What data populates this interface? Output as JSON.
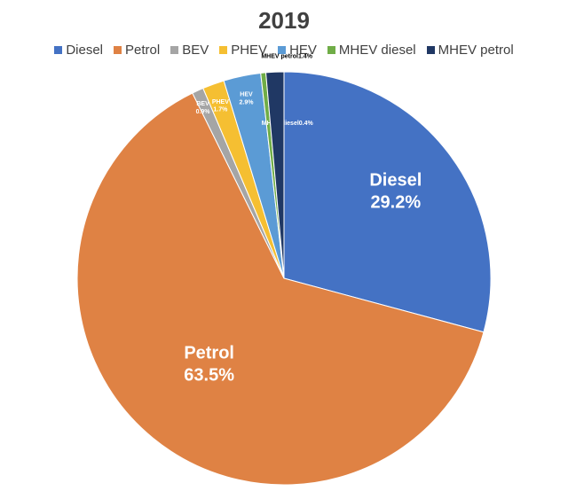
{
  "chart_data": {
    "type": "pie",
    "title": "2019",
    "legend_position": "top",
    "categories": [
      "Diesel",
      "Petrol",
      "BEV",
      "PHEV",
      "HEV",
      "MHEV diesel",
      "MHEV petrol"
    ],
    "values": [
      29.2,
      63.5,
      0.9,
      1.7,
      2.9,
      0.4,
      1.4
    ],
    "colors": [
      "#4472C4",
      "#DF8244",
      "#A5A5A5",
      "#F5BF32",
      "#5B9BD5",
      "#70AD47",
      "#203864"
    ],
    "data_labels": [
      {
        "name": "Diesel",
        "value": "29.2%"
      },
      {
        "name": "Petrol",
        "value": "63.5%"
      },
      {
        "name": "BEV",
        "value": "0.9%"
      },
      {
        "name": "PHEV",
        "value": "1.7%"
      },
      {
        "name": "HEV",
        "value": "2.9%"
      },
      {
        "name": "MHEV diesel",
        "value": "0.4%"
      },
      {
        "name": "MHEV petrol",
        "value": "1.4%"
      }
    ]
  }
}
